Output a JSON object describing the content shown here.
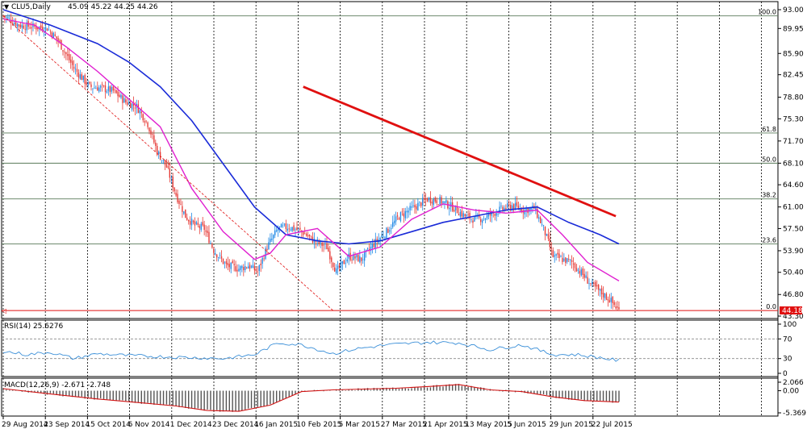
{
  "header": {
    "symbol": "CLU5,Daily",
    "ohlc": "45.09 45.22 44.25 44.26"
  },
  "price_axis": {
    "ticks": [
      "93.00",
      "89.95",
      "85.90",
      "82.45",
      "78.80",
      "75.30",
      "71.70",
      "68.10",
      "64.60",
      "61.00",
      "57.50",
      "53.90",
      "50.40",
      "46.80",
      "43.30"
    ],
    "current_price_label": "44.18"
  },
  "fib_labels": [
    "100.0",
    "61.8",
    "50.0",
    "38.2",
    "23.6",
    "0.0"
  ],
  "rsi": {
    "label": "RSI(14) 25.6276",
    "ticks": [
      "100",
      "70",
      "30",
      "0"
    ]
  },
  "macd": {
    "label": "MACD(12,26,9) -2.671 -2.748",
    "ticks": [
      "2.066",
      "0.00",
      "-5.369"
    ]
  },
  "time_axis": {
    "labels": [
      "29 Aug 2014",
      "23 Sep 2014",
      "15 Oct 2014",
      "6 Nov 2014",
      "1 Dec 2014",
      "23 Dec 2014",
      "16 Jan 2015",
      "10 Feb 2015",
      "5 Mar 2015",
      "27 Mar 2015",
      "21 Apr 2015",
      "13 May 2015",
      "5 Jun 2015",
      "29 Jun 2015",
      "22 Jul 2015"
    ]
  },
  "colors": {
    "bull": "#1e88e5",
    "bear": "#e53935",
    "ma_fast": "#e020d0",
    "ma_slow": "#1a2bd8",
    "trendline": "#e01010",
    "fib": "#5a7a5a",
    "rsi": "#3a8fd8",
    "macd_signal": "#d01010",
    "macd_hist": "#555555"
  },
  "chart_data": {
    "type": "candlestick",
    "title": "CLU5,Daily",
    "ylim": [
      43.3,
      93.0
    ],
    "fib_levels": [
      {
        "label": "100.0",
        "price": 92.0
      },
      {
        "label": "61.8",
        "price": 73.0
      },
      {
        "label": "50.0",
        "price": 68.1
      },
      {
        "label": "38.2",
        "price": 62.3
      },
      {
        "label": "23.6",
        "price": 55.0
      },
      {
        "label": "0.0",
        "price": 44.2
      }
    ],
    "trendline_red": {
      "from": {
        "date": "2 Feb 2015",
        "price": 80.5
      },
      "to": {
        "date": "28 Jul 2015",
        "price": 59.5
      }
    },
    "trendline_dashed": {
      "from": {
        "date": "29 Aug 2014",
        "price": 92.0
      },
      "to": {
        "date": "24 Feb 2015",
        "price": 44.2
      }
    },
    "close_path": [
      [
        0,
        92.0
      ],
      [
        10,
        90.5
      ],
      [
        20,
        90.2
      ],
      [
        28,
        90.0
      ],
      [
        35,
        88.0
      ],
      [
        45,
        83.5
      ],
      [
        55,
        80.5
      ],
      [
        62,
        80.3
      ],
      [
        70,
        79.8
      ],
      [
        78,
        78.0
      ],
      [
        85,
        77.3
      ],
      [
        92,
        74.5
      ],
      [
        98,
        70.0
      ],
      [
        104,
        67.5
      ],
      [
        110,
        63.0
      ],
      [
        116,
        59.5
      ],
      [
        122,
        58.0
      ],
      [
        128,
        57.5
      ],
      [
        134,
        54.0
      ],
      [
        142,
        51.5
      ],
      [
        150,
        51.0
      ],
      [
        156,
        51.5
      ],
      [
        162,
        50.5
      ],
      [
        168,
        54.5
      ],
      [
        175,
        57.5
      ],
      [
        182,
        57.8
      ],
      [
        190,
        57.0
      ],
      [
        198,
        55.5
      ],
      [
        206,
        54.5
      ],
      [
        212,
        50.5
      ],
      [
        220,
        53.0
      ],
      [
        228,
        52.5
      ],
      [
        236,
        55.0
      ],
      [
        244,
        57.0
      ],
      [
        252,
        59.5
      ],
      [
        262,
        61.0
      ],
      [
        270,
        62.3
      ],
      [
        278,
        62.0
      ],
      [
        286,
        61.0
      ],
      [
        294,
        59.5
      ],
      [
        300,
        59.0
      ],
      [
        306,
        59.2
      ],
      [
        316,
        60.5
      ],
      [
        324,
        61.2
      ],
      [
        332,
        60.5
      ],
      [
        338,
        60.8
      ],
      [
        344,
        57.5
      ],
      [
        350,
        53.0
      ],
      [
        356,
        52.5
      ],
      [
        362,
        52.0
      ],
      [
        368,
        50.3
      ],
      [
        374,
        48.5
      ],
      [
        380,
        47.2
      ],
      [
        386,
        46.0
      ],
      [
        392,
        44.2
      ]
    ],
    "ma_fast_path": [
      [
        0,
        91.5
      ],
      [
        20,
        90.5
      ],
      [
        40,
        87.0
      ],
      [
        60,
        83.0
      ],
      [
        80,
        78.5
      ],
      [
        100,
        74.0
      ],
      [
        120,
        64.0
      ],
      [
        140,
        57.0
      ],
      [
        160,
        52.5
      ],
      [
        170,
        53.5
      ],
      [
        180,
        56.5
      ],
      [
        200,
        57.5
      ],
      [
        220,
        53.0
      ],
      [
        240,
        54.5
      ],
      [
        260,
        59.0
      ],
      [
        280,
        61.5
      ],
      [
        300,
        60.5
      ],
      [
        320,
        60.0
      ],
      [
        340,
        60.5
      ],
      [
        356,
        56.5
      ],
      [
        372,
        52.0
      ],
      [
        392,
        49.0
      ]
    ],
    "ma_slow_path": [
      [
        0,
        93.0
      ],
      [
        30,
        90.5
      ],
      [
        60,
        87.5
      ],
      [
        80,
        84.5
      ],
      [
        100,
        80.5
      ],
      [
        120,
        75.0
      ],
      [
        140,
        68.0
      ],
      [
        160,
        61.0
      ],
      [
        180,
        56.5
      ],
      [
        200,
        55.5
      ],
      [
        220,
        55.0
      ],
      [
        240,
        55.5
      ],
      [
        260,
        57.0
      ],
      [
        280,
        58.5
      ],
      [
        300,
        59.5
      ],
      [
        320,
        60.5
      ],
      [
        340,
        61.0
      ],
      [
        360,
        58.5
      ],
      [
        380,
        56.5
      ],
      [
        392,
        55.0
      ]
    ],
    "rsi_path": [
      [
        0,
        45
      ],
      [
        15,
        38
      ],
      [
        30,
        43
      ],
      [
        45,
        30
      ],
      [
        60,
        40
      ],
      [
        80,
        36
      ],
      [
        100,
        34
      ],
      [
        120,
        32
      ],
      [
        140,
        30
      ],
      [
        160,
        38
      ],
      [
        175,
        62
      ],
      [
        190,
        58
      ],
      [
        210,
        40
      ],
      [
        225,
        50
      ],
      [
        245,
        58
      ],
      [
        270,
        63
      ],
      [
        290,
        62
      ],
      [
        310,
        48
      ],
      [
        330,
        58
      ],
      [
        350,
        38
      ],
      [
        365,
        38
      ],
      [
        380,
        32
      ],
      [
        392,
        25.6
      ]
    ],
    "macd_signal_path": [
      [
        0,
        0.5
      ],
      [
        30,
        -0.8
      ],
      [
        60,
        -2.0
      ],
      [
        90,
        -3.0
      ],
      [
        110,
        -3.7
      ],
      [
        130,
        -4.8
      ],
      [
        150,
        -5.0
      ],
      [
        170,
        -3.5
      ],
      [
        190,
        -0.2
      ],
      [
        210,
        0.2
      ],
      [
        230,
        0.4
      ],
      [
        250,
        0.6
      ],
      [
        270,
        1.0
      ],
      [
        290,
        1.5
      ],
      [
        310,
        0.2
      ],
      [
        330,
        -0.2
      ],
      [
        350,
        -1.5
      ],
      [
        370,
        -2.4
      ],
      [
        392,
        -2.748
      ]
    ],
    "rsi_levels": [
      70,
      30
    ]
  }
}
